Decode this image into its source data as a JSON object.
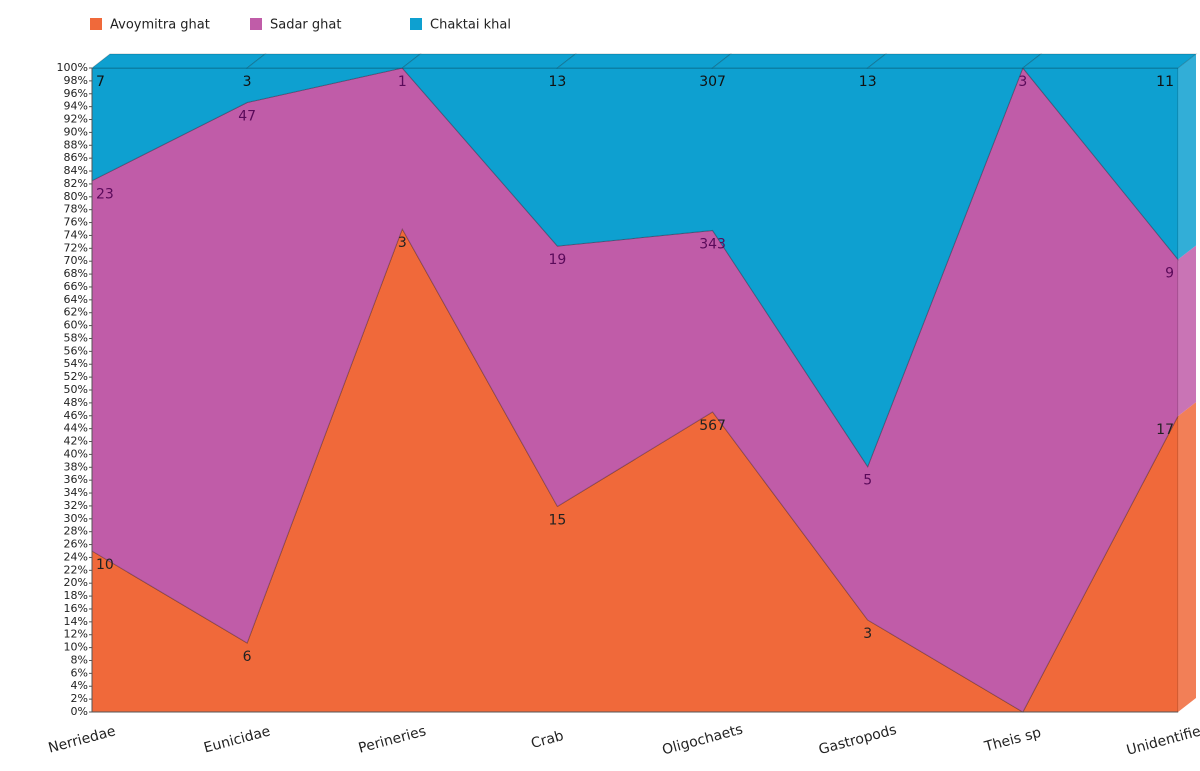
{
  "chart_data": {
    "type": "stacked_area_percent",
    "categories": [
      "Nerriedae",
      "Eunicidae",
      "Perineries",
      "Crab",
      "Oligochaets",
      "Gastropods",
      "Theis sp",
      "Unidentified"
    ],
    "series": [
      {
        "name": "Avoymitra ghat",
        "color": "#f0693a",
        "values": [
          10,
          6,
          3,
          15,
          567,
          3,
          0,
          17
        ]
      },
      {
        "name": "Sadar ghat",
        "color": "#c05ca8",
        "values": [
          23,
          47,
          1,
          19,
          343,
          5,
          3,
          9
        ]
      },
      {
        "name": "Chaktai khal",
        "color": "#0ea0d0",
        "values": [
          7,
          3,
          0,
          13,
          307,
          13,
          0,
          11
        ]
      }
    ],
    "ylim": [
      0,
      100
    ],
    "yticks": [
      {
        "value": 0,
        "label": "0%"
      },
      {
        "value": 2,
        "label": "2%"
      },
      {
        "value": 4,
        "label": "4%"
      },
      {
        "value": 6,
        "label": "6%"
      },
      {
        "value": 8,
        "label": "8%"
      },
      {
        "value": 10,
        "label": "10%"
      },
      {
        "value": 12,
        "label": "12%"
      },
      {
        "value": 14,
        "label": "14%"
      },
      {
        "value": 16,
        "label": "16%"
      },
      {
        "value": 18,
        "label": "18%"
      },
      {
        "value": 20,
        "label": "20%"
      },
      {
        "value": 22,
        "label": "22%"
      },
      {
        "value": 24,
        "label": "24%"
      },
      {
        "value": 26,
        "label": "26%"
      },
      {
        "value": 28,
        "label": "28%"
      },
      {
        "value": 30,
        "label": "30%"
      },
      {
        "value": 32,
        "label": "32%"
      },
      {
        "value": 34,
        "label": "34%"
      },
      {
        "value": 36,
        "label": "36%"
      },
      {
        "value": 38,
        "label": "38%"
      },
      {
        "value": 40,
        "label": "40%"
      },
      {
        "value": 42,
        "label": "42%"
      },
      {
        "value": 44,
        "label": "44%"
      },
      {
        "value": 46,
        "label": "46%"
      },
      {
        "value": 48,
        "label": "48%"
      },
      {
        "value": 50,
        "label": "50%"
      },
      {
        "value": 52,
        "label": "52%"
      },
      {
        "value": 54,
        "label": "54%"
      },
      {
        "value": 56,
        "label": "56%"
      },
      {
        "value": 58,
        "label": "58%"
      },
      {
        "value": 60,
        "label": "60%"
      },
      {
        "value": 62,
        "label": "62%"
      },
      {
        "value": 64,
        "label": "64%"
      },
      {
        "value": 66,
        "label": "66%"
      },
      {
        "value": 68,
        "label": "68%"
      },
      {
        "value": 70,
        "label": "70%"
      },
      {
        "value": 72,
        "label": "72%"
      },
      {
        "value": 74,
        "label": "74%"
      },
      {
        "value": 76,
        "label": "76%"
      },
      {
        "value": 78,
        "label": "78%"
      },
      {
        "value": 80,
        "label": "80%"
      },
      {
        "value": 82,
        "label": "82%"
      },
      {
        "value": 84,
        "label": "84%"
      },
      {
        "value": 86,
        "label": "86%"
      },
      {
        "value": 88,
        "label": "88%"
      },
      {
        "value": 90,
        "label": "90%"
      },
      {
        "value": 92,
        "label": "92%"
      },
      {
        "value": 94,
        "label": "94%"
      },
      {
        "value": 96,
        "label": "96%"
      },
      {
        "value": 98,
        "label": "98%"
      },
      {
        "value": 100,
        "label": "100%"
      }
    ],
    "legend": "top-left"
  }
}
